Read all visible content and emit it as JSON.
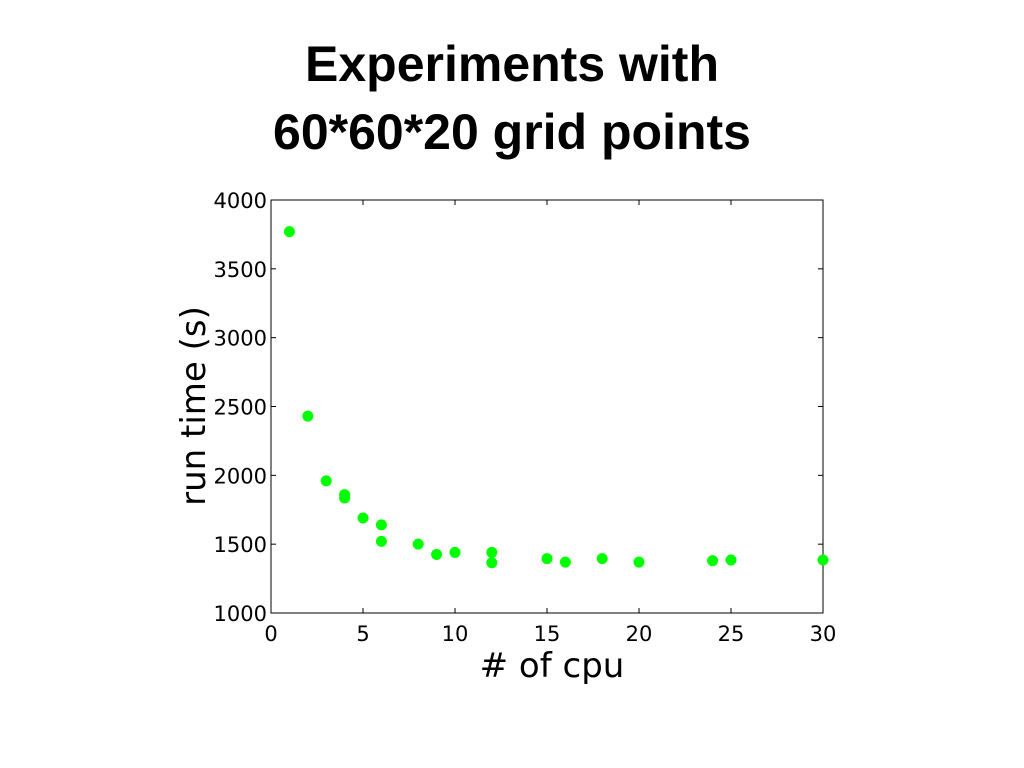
{
  "slide": {
    "title_lines": [
      "Experiments with",
      "60*60*20 grid points"
    ]
  },
  "chart_data": {
    "type": "scatter",
    "xlabel": "# of cpu",
    "ylabel": "run time (s)",
    "xlim": [
      0,
      30
    ],
    "ylim": [
      1000,
      4000
    ],
    "x_ticks": [
      0,
      5,
      10,
      15,
      20,
      25,
      30
    ],
    "y_ticks": [
      1000,
      1500,
      2000,
      2500,
      3000,
      3500,
      4000
    ],
    "grid": false,
    "marker_color": "#00ff00",
    "series": [
      {
        "points": [
          {
            "x": 1,
            "y": 3770
          },
          {
            "x": 2,
            "y": 2430
          },
          {
            "x": 3,
            "y": 1960
          },
          {
            "x": 4,
            "y": 1860
          },
          {
            "x": 4,
            "y": 1835
          },
          {
            "x": 5,
            "y": 1690
          },
          {
            "x": 6,
            "y": 1640
          },
          {
            "x": 6,
            "y": 1520
          },
          {
            "x": 8,
            "y": 1500
          },
          {
            "x": 9,
            "y": 1425
          },
          {
            "x": 10,
            "y": 1440
          },
          {
            "x": 12,
            "y": 1440
          },
          {
            "x": 12,
            "y": 1365
          },
          {
            "x": 15,
            "y": 1395
          },
          {
            "x": 16,
            "y": 1370
          },
          {
            "x": 18,
            "y": 1395
          },
          {
            "x": 20,
            "y": 1370
          },
          {
            "x": 24,
            "y": 1380
          },
          {
            "x": 25,
            "y": 1385
          },
          {
            "x": 30,
            "y": 1385
          }
        ]
      }
    ]
  }
}
